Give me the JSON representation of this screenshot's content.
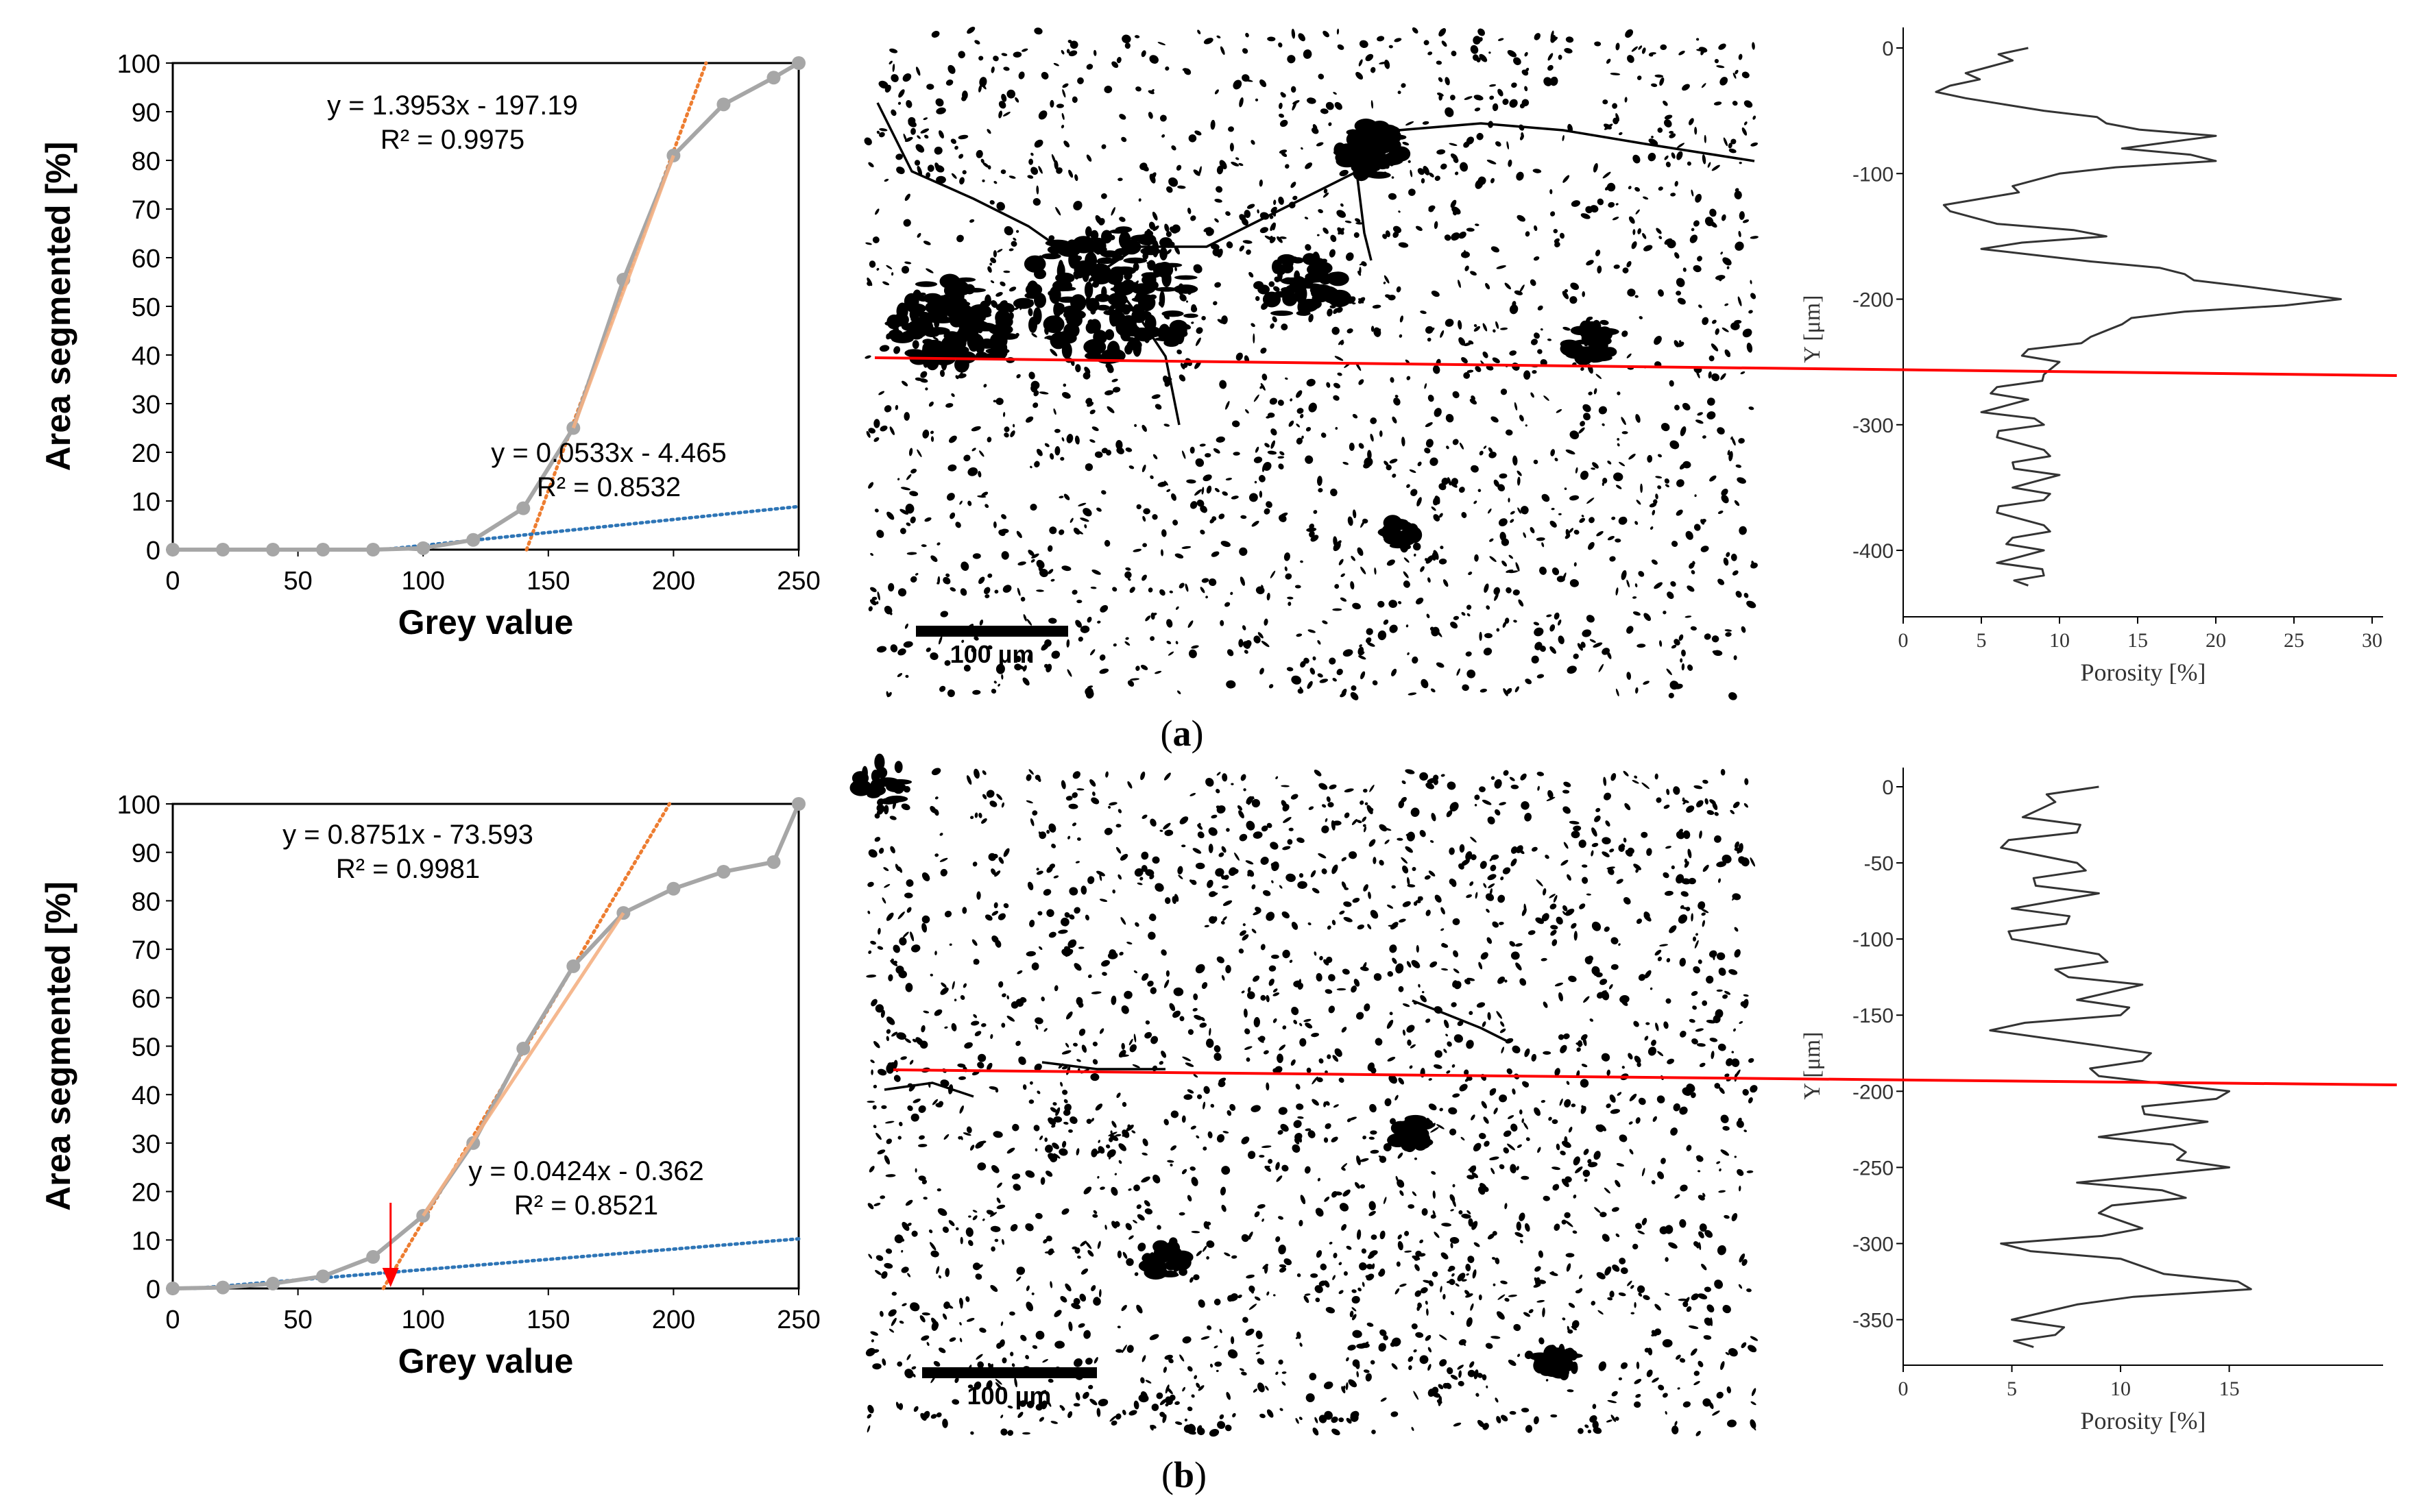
{
  "figure": {
    "panel_labels": [
      {
        "open": "(",
        "letter": "a",
        "close": ")"
      },
      {
        "open": "(",
        "letter": "b",
        "close": ")"
      }
    ],
    "scale_bar_label": "100 µm"
  },
  "chart_data": [
    {
      "type": "line",
      "panel": "a-left",
      "xlabel": "Grey value",
      "ylabel": "Area segmented [%]",
      "xlim": [
        0,
        250
      ],
      "ylim": [
        0,
        100
      ],
      "xticks": [
        0,
        50,
        100,
        150,
        200,
        250
      ],
      "yticks": [
        0,
        10,
        20,
        30,
        40,
        50,
        60,
        70,
        80,
        90,
        100
      ],
      "series": [
        {
          "x": [
            0,
            20,
            40,
            60,
            80,
            100,
            120,
            140,
            160,
            180,
            200,
            220,
            240,
            250
          ],
          "y": [
            0,
            0,
            0,
            0,
            0,
            0.3,
            2,
            8.5,
            25,
            55.5,
            81,
            91.5,
            97,
            100
          ],
          "color": "#a6a6a6"
        }
      ],
      "trendlines": [
        {
          "slope": 1.3953,
          "intercept": -197.19,
          "x_range": [
            141.3,
            213
          ],
          "color": "#ed7d31",
          "equation": "y = 1.3953x - 197.19",
          "r2": "R² = 0.9975"
        },
        {
          "slope": 0.0533,
          "intercept": -4.465,
          "x_range": [
            83.8,
            250
          ],
          "color": "#2e75b6",
          "equation": "y = 0.0533x - 4.465",
          "r2": "R² = 0.8532"
        }
      ]
    },
    {
      "type": "line",
      "panel": "a-right",
      "xlabel": "Porosity [%]",
      "ylabel": "Y [μm]",
      "xlim": [
        0,
        30
      ],
      "ylim": [
        0,
        -430
      ],
      "xticks": [
        0,
        5,
        10,
        15,
        20,
        25,
        30
      ],
      "xtick_labels": [
        "0",
        "5",
        "10",
        "15",
        "20",
        "25",
        "30"
      ],
      "yticks": [
        0,
        -100,
        -200,
        -300,
        -400
      ],
      "depth": [
        0,
        -10,
        -20,
        -30,
        -40,
        -50,
        -60,
        -70,
        -80,
        -90,
        -100,
        -110,
        -120,
        -130,
        -140,
        -150,
        -160,
        -170,
        -180,
        -190,
        -200,
        -210,
        -220,
        -230,
        -240,
        -250,
        -260,
        -270,
        -280,
        -290,
        -300,
        -310,
        -320,
        -330,
        -340,
        -350,
        -360,
        -370,
        -380,
        -390,
        -400,
        -410,
        -420,
        -428
      ],
      "porosity": [
        8,
        7,
        4,
        3,
        4,
        9,
        13,
        20,
        14,
        20,
        10,
        7,
        5,
        3,
        6,
        13,
        5,
        12,
        18,
        22,
        28,
        18,
        14,
        12,
        8,
        10,
        9,
        6,
        8,
        5,
        9,
        6,
        9,
        7,
        10,
        7,
        9,
        6,
        9,
        7,
        9,
        6,
        9,
        8
      ],
      "color": "#333333"
    },
    {
      "type": "line",
      "panel": "b-left",
      "xlabel": "Grey value",
      "ylabel": "Area segmented [%]",
      "xlim": [
        0,
        250
      ],
      "ylim": [
        0,
        100
      ],
      "xticks": [
        0,
        50,
        100,
        150,
        200,
        250
      ],
      "yticks": [
        0,
        10,
        20,
        30,
        40,
        50,
        60,
        70,
        80,
        90,
        100
      ],
      "series": [
        {
          "x": [
            0,
            20,
            40,
            60,
            80,
            100,
            120,
            140,
            160,
            180,
            200,
            220,
            240,
            250
          ],
          "y": [
            0,
            0.2,
            1,
            2.5,
            6.5,
            15,
            30,
            49.5,
            66.5,
            77.5,
            82.5,
            86,
            88,
            100
          ],
          "color": "#a6a6a6"
        }
      ],
      "trendlines": [
        {
          "slope": 0.8751,
          "intercept": -73.593,
          "x_range": [
            84.1,
            198.4
          ],
          "color": "#ed7d31",
          "equation": "y = 0.8751x - 73.593",
          "r2": "R² = 0.9981"
        },
        {
          "slope": 0.0424,
          "intercept": -0.362,
          "x_range": [
            8.5,
            250
          ],
          "color": "#2e75b6",
          "equation": "y = 0.0424x - 0.362",
          "r2": "R² = 0.8521"
        }
      ],
      "marker_arrow": {
        "x": 87,
        "color": "#ff0000"
      }
    },
    {
      "type": "line",
      "panel": "b-right",
      "xlabel": "Porosity [%]",
      "ylabel": "Y [μm]",
      "xlim": [
        0,
        17
      ],
      "ylim": [
        0,
        -370
      ],
      "xticks": [
        0,
        5,
        10,
        15
      ],
      "xtick_labels": [
        "0",
        "5",
        "10",
        "15"
      ],
      "yticks": [
        0,
        -50,
        -100,
        -150,
        -200,
        -250,
        -300,
        -350
      ],
      "depth": [
        0,
        -10,
        -20,
        -30,
        -40,
        -50,
        -60,
        -70,
        -80,
        -90,
        -100,
        -110,
        -120,
        -130,
        -140,
        -150,
        -160,
        -170,
        -180,
        -190,
        -200,
        -210,
        -220,
        -230,
        -240,
        -250,
        -260,
        -270,
        -280,
        -290,
        -300,
        -310,
        -320,
        -330,
        -340,
        -350,
        -360,
        -368
      ],
      "porosity": [
        9,
        7,
        5.5,
        8,
        4.5,
        8,
        6,
        9,
        5,
        7.5,
        5,
        9,
        7,
        11,
        8,
        10,
        4,
        9,
        11,
        9,
        15,
        11,
        14,
        9,
        13,
        15,
        8,
        13,
        9,
        11,
        4.5,
        10,
        12,
        16,
        8,
        5,
        7,
        6
      ],
      "color": "#333333"
    }
  ]
}
